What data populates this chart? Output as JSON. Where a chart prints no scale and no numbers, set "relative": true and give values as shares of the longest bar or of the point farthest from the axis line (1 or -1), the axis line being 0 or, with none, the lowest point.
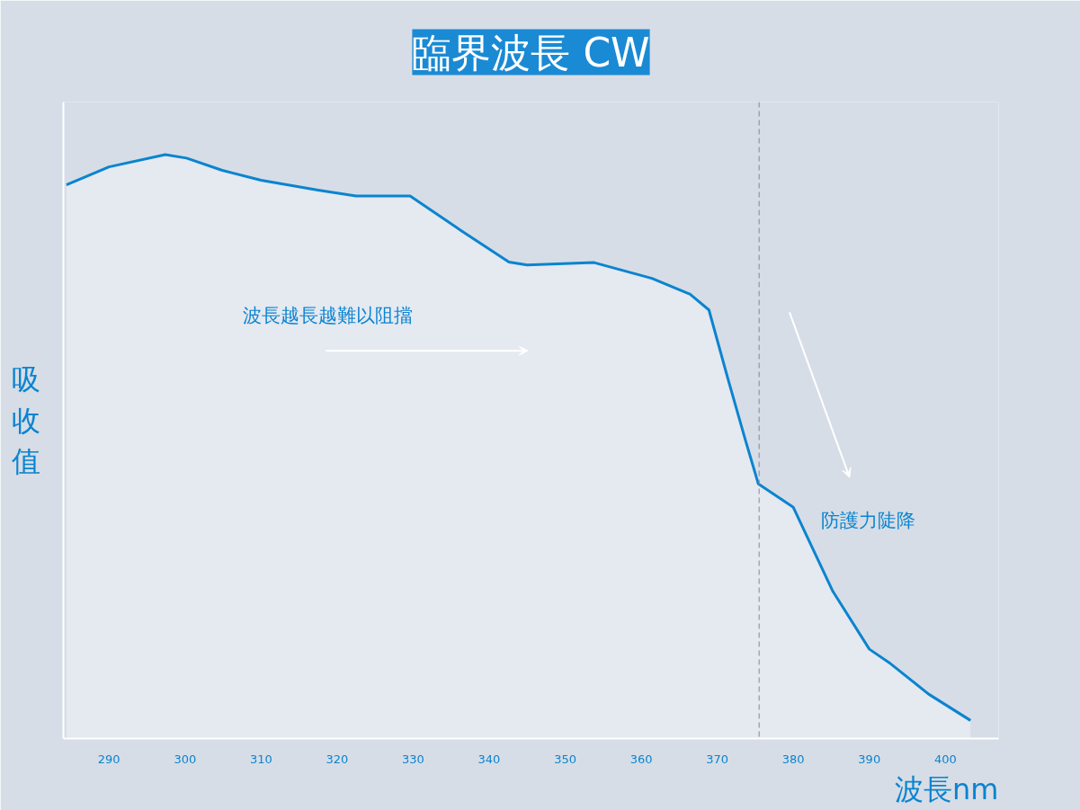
{
  "chart_data": {
    "type": "area",
    "title": "臨界波長 CW",
    "xlabel": "波長nm",
    "ylabel": "吸收值",
    "relative": true,
    "x": [
      284.4,
      290,
      297.4,
      300.2,
      304.9,
      310,
      317.5,
      322.5,
      329.6,
      336.3,
      342.6,
      345,
      353.8,
      361.4,
      366.4,
      368.9,
      371.4,
      373.7,
      375.4,
      380,
      385.2,
      390,
      392.8,
      397.8,
      403.3
    ],
    "series": [
      {
        "color": "#0a84d0",
        "values": [
          0.948,
          0.979,
          1,
          0.994,
          0.973,
          0.956,
          0.939,
          0.929,
          0.929,
          0.87,
          0.816,
          0.811,
          0.815,
          0.788,
          0.761,
          0.734,
          0.616,
          0.511,
          0.436,
          0.396,
          0.252,
          0.153,
          0.128,
          0.076,
          0.031
        ]
      }
    ],
    "xlim": [
      284,
      407
    ],
    "xticks": [
      290,
      300,
      310,
      320,
      330,
      340,
      350,
      360,
      370,
      380,
      390,
      400
    ],
    "ref_lines": [
      {
        "axis": "x",
        "value": 375.5,
        "color": "#888888",
        "line_style": "dashed"
      }
    ],
    "annotations": [
      "波長越長越難以阻擋",
      "防護力陡降"
    ],
    "grid": false
  }
}
